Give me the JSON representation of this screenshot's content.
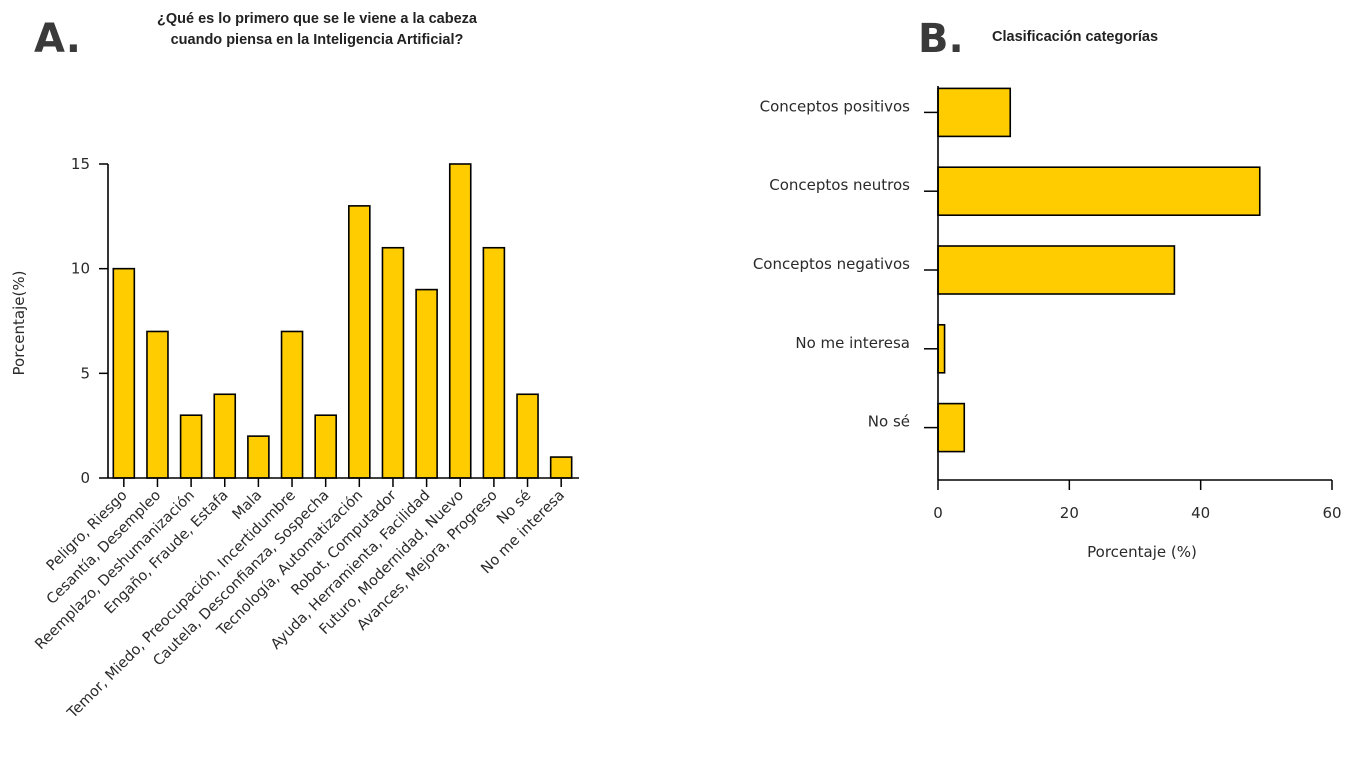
{
  "colors": {
    "bar_fill": "#FFCC00",
    "bar_stroke": "#000000",
    "axis": "#000000",
    "text": "#2a2a2a"
  },
  "chart_data": [
    {
      "panel": "A.",
      "type": "bar",
      "orientation": "vertical",
      "title_lines": [
        "¿Qué es lo primero que se le viene a la cabeza",
        "cuando piensa en la Inteligencia Artificial?"
      ],
      "xlabel": "",
      "ylabel": "Porcentaje(%)",
      "ylim": [
        0,
        15
      ],
      "yticks": [
        0,
        5,
        10,
        15
      ],
      "grid": false,
      "categories": [
        "Peligro, Riesgo",
        "Cesantía, Desempleo",
        "Reemplazo, Deshumanización",
        "Engaño, Fraude, Estafa",
        "Mala",
        "Temor, Miedo, Preocupación, Incertidumbre",
        "Cautela, Desconfianza, Sospecha",
        "Tecnología, Automatización",
        "Robot, Computador",
        "Ayuda, Herramienta, Facilidad",
        "Futuro, Modernidad, Nuevo",
        "Avances, Mejora, Progreso",
        "No sé",
        "No me interesa"
      ],
      "values": [
        10,
        7,
        3,
        4,
        2,
        7,
        3,
        13,
        11,
        9,
        15,
        11,
        4,
        1
      ]
    },
    {
      "panel": "B.",
      "type": "bar",
      "orientation": "horizontal",
      "title_lines": [
        "Clasificación categorías"
      ],
      "xlabel": "Porcentaje (%)",
      "ylabel": "",
      "xlim": [
        0,
        60
      ],
      "xticks": [
        0,
        20,
        40,
        60
      ],
      "grid": false,
      "categories": [
        "Conceptos positivos",
        "Conceptos neutros",
        "Conceptos negativos",
        "No me interesa",
        "No sé"
      ],
      "values": [
        11,
        49,
        36,
        1,
        4
      ]
    }
  ]
}
